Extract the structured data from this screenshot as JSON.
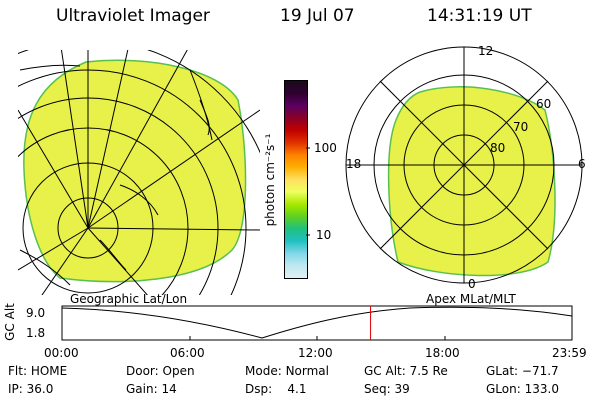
{
  "header": {
    "title": "Ultraviolet Imager",
    "date": "19 Jul 07",
    "time": "14:31:19 UT"
  },
  "colorbar": {
    "unit_label": "photon cm⁻²s⁻¹",
    "tick_100": "100",
    "tick_10": "10",
    "colors": [
      "#1a0a1a",
      "#300030",
      "#5a0060",
      "#8a0028",
      "#c00000",
      "#e03000",
      "#ff8000",
      "#ffb000",
      "#ffe060",
      "#f0ff60",
      "#a8e800",
      "#60d020",
      "#20c080",
      "#20c0c0",
      "#80d8e8",
      "#c0e8f0",
      "#e0f0f4"
    ]
  },
  "left_panel": {
    "caption": "Geographic Lat/Lon",
    "fill_color": "#e8f04a"
  },
  "right_panel": {
    "caption": "Apex MLat/MLT",
    "mlt_12": "12",
    "mlt_18": "18",
    "mlt_6": "6",
    "mlt_0": "0",
    "lat_60": "60",
    "lat_70": "70",
    "lat_80": "80",
    "fill_color": "#e8f04a"
  },
  "timeline": {
    "axis_label": "GC Alt",
    "ymax": "9.0",
    "ymin": "1.8",
    "ticks": [
      "00:00",
      "06:00",
      "12:00",
      "18:00",
      "23:59"
    ],
    "marker_time_hours": 14.52,
    "marker_color": "#e00000"
  },
  "status": {
    "flt_label": "Flt:",
    "flt_value": "HOME",
    "ip_label": "IP:",
    "ip_value": "36.0",
    "door_label": "Door:",
    "door_value": "Open",
    "gain_label": "Gain:",
    "gain_value": "14",
    "mode_label": "Mode:",
    "mode_value": "Normal",
    "dsp_label": "Dsp:",
    "dsp_value": "4.1",
    "gcalt_label": "GC Alt:",
    "gcalt_value": "7.5 Re",
    "seq_label": "Seq:",
    "seq_value": "39",
    "glat_label": "GLat:",
    "glat_value": "−71.7",
    "glon_label": "GLon:",
    "glon_value": "133.0"
  }
}
